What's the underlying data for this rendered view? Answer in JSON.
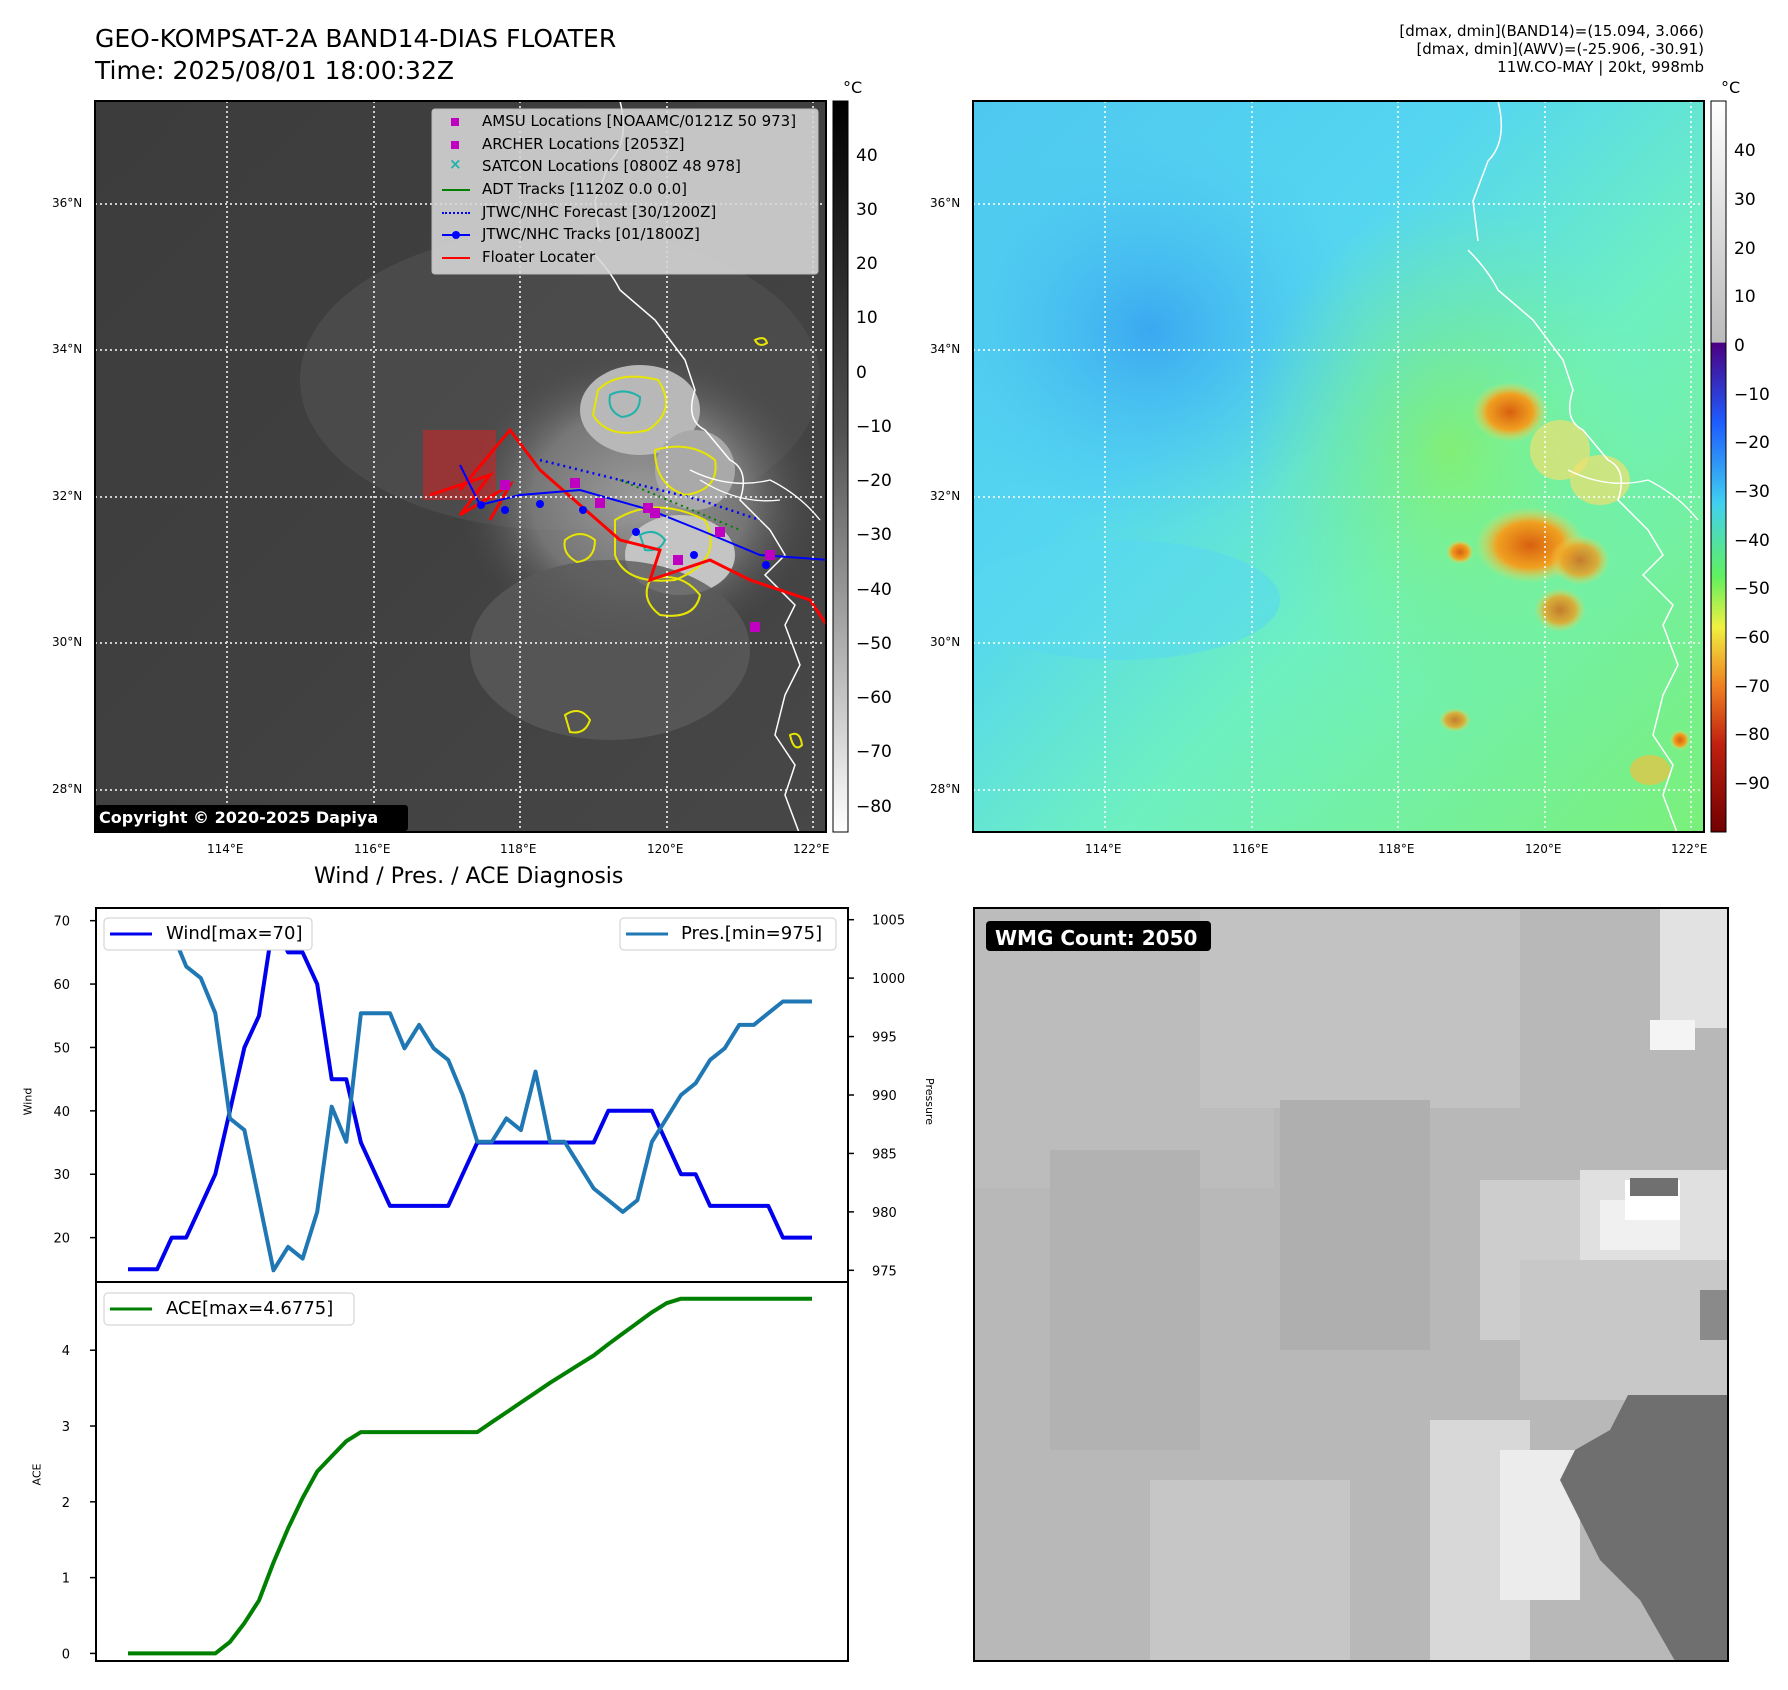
{
  "title": {
    "line1": "GEO-KOMPSAT-2A BAND14-DIAS FLOATER",
    "line2": "Time: 2025/08/01 18:00:32Z"
  },
  "info": {
    "line1": "[dmax, dmin](BAND14)=(15.094, 3.066)",
    "line2": "[dmax, dmin](AWV)=(-25.906, -30.91)",
    "line3": "11W.CO-MAY | 20kt, 998mb"
  },
  "copyright": "Copyright © 2020-2025 Dapiya",
  "maps": {
    "lon_ticks": [
      "114°E",
      "116°E",
      "118°E",
      "120°E",
      "122°E"
    ],
    "lat_ticks": [
      "28°N",
      "30°N",
      "32°N",
      "34°N",
      "36°N"
    ],
    "ir_colorbar": {
      "unit": "°C",
      "ticks": [
        "40",
        "30",
        "20",
        "10",
        "0",
        "−10",
        "−20",
        "−30",
        "−40",
        "−50",
        "−60",
        "−70",
        "−80"
      ]
    },
    "wv_colorbar": {
      "unit": "°C",
      "ticks": [
        "40",
        "30",
        "20",
        "10",
        "0",
        "−10",
        "−20",
        "−30",
        "−40",
        "−50",
        "−60",
        "−70",
        "−80",
        "−90"
      ]
    }
  },
  "legend": [
    {
      "label": "AMSU Locations [NOAAMC/0121Z 50 973]",
      "kind": "square",
      "color": "#c000c0"
    },
    {
      "label": "ARCHER Locations [2053Z]",
      "kind": "square",
      "color": "#c000c0"
    },
    {
      "label": "SATCON Locations [0800Z 48 978]",
      "kind": "x",
      "color": "#20b2aa"
    },
    {
      "label": "ADT Tracks [1120Z 0.0 0.0]",
      "kind": "line",
      "color": "#008000"
    },
    {
      "label": "JTWC/NHC Forecast [30/1200Z]",
      "kind": "dotted",
      "color": "#0000ff"
    },
    {
      "label": "JTWC/NHC Tracks [01/1800Z]",
      "kind": "dotline",
      "color": "#0000ff"
    },
    {
      "label": "Floater Locater",
      "kind": "line",
      "color": "#ff0000"
    }
  ],
  "diagnosis": {
    "title": "Wind / Pres. / ACE Diagnosis",
    "wind_legend": "Wind[max=70]",
    "pres_legend": "Pres.[min=975]",
    "ace_legend": "ACE[max=4.6775]",
    "wind_axis_label": "Wind",
    "pres_axis_label": "Pressure",
    "ace_axis_label": "ACE",
    "wind_ticks": [
      "20",
      "30",
      "40",
      "50",
      "60",
      "70"
    ],
    "pres_ticks": [
      "975",
      "980",
      "985",
      "990",
      "995",
      "1000",
      "1005"
    ],
    "ace_ticks": [
      "0",
      "1",
      "2",
      "3",
      "4"
    ]
  },
  "wmg": {
    "label": "WMG Count: 2050"
  },
  "chart_data": [
    {
      "type": "line",
      "title": "Wind / Pres. / ACE Diagnosis",
      "ylabel": "Wind",
      "ylim": [
        13,
        72
      ],
      "x": [
        0,
        1,
        2,
        3,
        4,
        5,
        6,
        7,
        8,
        9,
        10,
        11,
        12,
        13,
        14,
        15,
        16,
        17,
        18,
        19,
        20,
        21,
        22,
        23,
        24,
        25,
        26,
        27,
        28,
        29,
        30,
        31,
        32,
        33,
        34,
        35,
        36,
        37,
        38,
        39,
        40,
        41,
        42,
        43,
        44,
        45,
        46,
        47
      ],
      "series": [
        {
          "name": "Wind[max=70]",
          "color": "#0000ee",
          "values": [
            15,
            15,
            15,
            20,
            20,
            25,
            30,
            40,
            50,
            55,
            70,
            65,
            65,
            60,
            45,
            45,
            35,
            30,
            25,
            25,
            25,
            25,
            25,
            30,
            35,
            35,
            35,
            35,
            35,
            35,
            35,
            35,
            35,
            40,
            40,
            40,
            40,
            35,
            30,
            30,
            25,
            25,
            25,
            25,
            25,
            20,
            20,
            20
          ]
        }
      ]
    },
    {
      "type": "line",
      "ylabel": "Pressure",
      "ylim": [
        974,
        1006
      ],
      "x": [
        0,
        1,
        2,
        3,
        4,
        5,
        6,
        7,
        8,
        9,
        10,
        11,
        12,
        13,
        14,
        15,
        16,
        17,
        18,
        19,
        20,
        21,
        22,
        23,
        24,
        25,
        26,
        27,
        28,
        29,
        30,
        31,
        32,
        33,
        34,
        35,
        36,
        37,
        38,
        39,
        40,
        41,
        42,
        43,
        44,
        45,
        46,
        47
      ],
      "series": [
        {
          "name": "Pres.[min=975]",
          "color": "#1f77b4",
          "values": [
            1004,
            1004,
            1004,
            1004,
            1001,
            1000,
            997,
            988,
            987,
            981,
            975,
            977,
            976,
            980,
            989,
            986,
            997,
            997,
            997,
            994,
            996,
            994,
            993,
            990,
            986,
            986,
            988,
            987,
            992,
            986,
            986,
            984,
            982,
            981,
            980,
            981,
            986,
            988,
            990,
            991,
            993,
            994,
            996,
            996,
            997,
            998,
            998,
            998
          ]
        }
      ]
    },
    {
      "type": "line",
      "ylabel": "ACE",
      "ylim": [
        -0.1,
        4.9
      ],
      "x": [
        0,
        1,
        2,
        3,
        4,
        5,
        6,
        7,
        8,
        9,
        10,
        11,
        12,
        13,
        14,
        15,
        16,
        17,
        18,
        19,
        20,
        21,
        22,
        23,
        24,
        25,
        26,
        27,
        28,
        29,
        30,
        31,
        32,
        33,
        34,
        35,
        36,
        37,
        38,
        39,
        40,
        41,
        42,
        43,
        44,
        45,
        46,
        47
      ],
      "series": [
        {
          "name": "ACE[max=4.6775]",
          "color": "#008000",
          "values": [
            0,
            0,
            0,
            0,
            0,
            0,
            0,
            0.15,
            0.4,
            0.7,
            1.2,
            1.65,
            2.05,
            2.4,
            2.6,
            2.8,
            2.92,
            2.92,
            2.92,
            2.92,
            2.92,
            2.92,
            2.92,
            2.92,
            2.92,
            3.05,
            3.18,
            3.31,
            3.44,
            3.57,
            3.69,
            3.81,
            3.93,
            4.08,
            4.22,
            4.36,
            4.5,
            4.62,
            4.68,
            4.68,
            4.68,
            4.68,
            4.68,
            4.68,
            4.68,
            4.68,
            4.68,
            4.68
          ]
        }
      ]
    }
  ]
}
